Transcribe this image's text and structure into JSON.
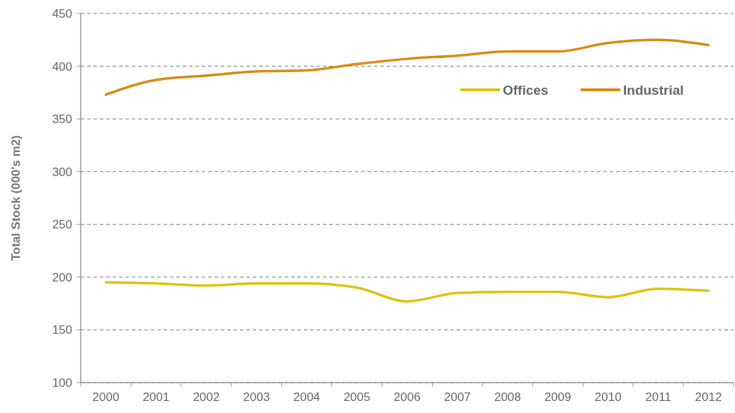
{
  "chart_data": {
    "type": "line",
    "ylabel": "Total Stock (000's m2)",
    "categories": [
      "2000",
      "2001",
      "2002",
      "2003",
      "2004",
      "2005",
      "2006",
      "2007",
      "2008",
      "2009",
      "2010",
      "2011",
      "2012"
    ],
    "series": [
      {
        "name": "Offices",
        "color": "#dcc30c",
        "values": [
          195,
          194,
          192,
          194,
          194,
          190,
          177,
          185,
          186,
          186,
          181,
          189,
          187
        ]
      },
      {
        "name": "Industrial",
        "color": "#dc8a12",
        "values": [
          373,
          387,
          391,
          395,
          396,
          402,
          407,
          410,
          414,
          414,
          422,
          425,
          420
        ]
      }
    ],
    "ylim": [
      100,
      450
    ],
    "yticks": [
      100,
      150,
      200,
      250,
      300,
      350,
      400,
      450
    ],
    "grid": "y",
    "legend": "top right",
    "line_style": "solid",
    "marker": "none"
  }
}
